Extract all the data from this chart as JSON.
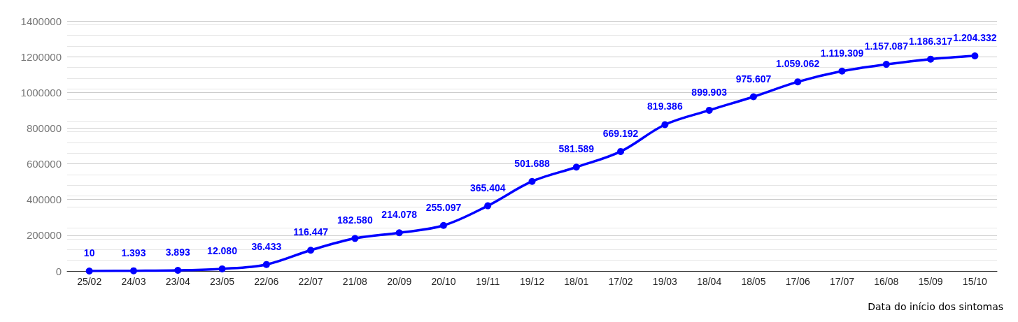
{
  "chart_data": {
    "type": "line",
    "xlabel": "Data do início dos sintomas",
    "categories": [
      "25/02",
      "24/03",
      "23/04",
      "23/05",
      "22/06",
      "22/07",
      "21/08",
      "20/09",
      "20/10",
      "19/11",
      "19/12",
      "18/01",
      "17/02",
      "19/03",
      "18/04",
      "18/05",
      "17/06",
      "17/07",
      "16/08",
      "15/09",
      "15/10"
    ],
    "series": [
      {
        "color": "#0000ff",
        "values": [
          10,
          1393,
          3893,
          12080,
          36433,
          116447,
          182580,
          214078,
          255097,
          365404,
          501688,
          581589,
          669192,
          819386,
          899903,
          975607,
          1059062,
          1119309,
          1157087,
          1186317,
          1204332
        ],
        "value_labels": [
          "10",
          "1.393",
          "3.893",
          "12.080",
          "36.433",
          "116.447",
          "182.580",
          "214.078",
          "255.097",
          "365.404",
          "501.688",
          "581.589",
          "669.192",
          "819.386",
          "899.903",
          "975.607",
          "1.059.062",
          "1.119.309",
          "1.157.087",
          "1.186.317",
          "1.204.332"
        ]
      }
    ],
    "ylim": [
      0,
      1400000
    ],
    "yticks": [
      0,
      200000,
      400000,
      600000,
      800000,
      1000000,
      1200000,
      1400000
    ],
    "grid": "y",
    "marker": "circle",
    "line_style": "solid"
  }
}
